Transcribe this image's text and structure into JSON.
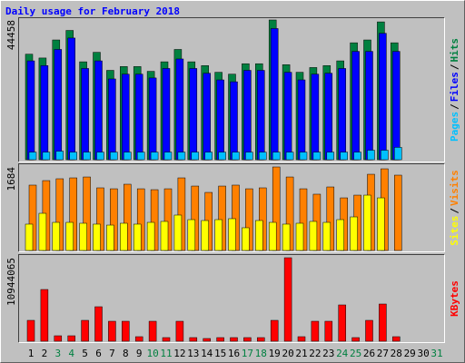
{
  "title": "Daily usage for February 2018",
  "label_separator": "/",
  "categories": [
    "1",
    "2",
    "3",
    "4",
    "5",
    "6",
    "7",
    "8",
    "9",
    "10",
    "11",
    "12",
    "13",
    "14",
    "15",
    "16",
    "17",
    "18",
    "19",
    "20",
    "21",
    "22",
    "23",
    "24",
    "25",
    "26",
    "27",
    "28",
    "29",
    "30",
    "31"
  ],
  "category_colors": [
    "#000000",
    "#000000",
    "#008040",
    "#008040",
    "#000000",
    "#000000",
    "#000000",
    "#000000",
    "#000000",
    "#008040",
    "#008040",
    "#000000",
    "#000000",
    "#000000",
    "#000000",
    "#000000",
    "#008040",
    "#008040",
    "#000000",
    "#000000",
    "#000000",
    "#000000",
    "#000000",
    "#008040",
    "#008040",
    "#000000",
    "#000000",
    "#000000",
    "#000000",
    "#000000",
    "#008040"
  ],
  "chart_data": [
    {
      "type": "bar",
      "ylim": [
        0,
        44458
      ],
      "yticks": [
        44458
      ],
      "series": [
        {
          "name": "Hits",
          "color": "#008040",
          "values": [
            33570,
            32360,
            38100,
            41130,
            31150,
            34170,
            28430,
            29640,
            29640,
            28120,
            31150,
            35080,
            31150,
            29940,
            27820,
            27220,
            30540,
            30540,
            44458,
            30240,
            27820,
            29330,
            29940,
            31450,
            37200,
            38100,
            43850,
            37200,
            0,
            0,
            0
          ]
        },
        {
          "name": "Files",
          "color": "#0000ff",
          "values": [
            31450,
            29940,
            35080,
            38710,
            29030,
            31450,
            25700,
            27220,
            27220,
            26010,
            29030,
            32050,
            29030,
            27520,
            25400,
            24800,
            28430,
            28430,
            41730,
            27820,
            25400,
            27220,
            27520,
            29030,
            34470,
            34470,
            40220,
            34470,
            0,
            0,
            0
          ]
        },
        {
          "name": "Pages",
          "color": "#00c0ff",
          "values": [
            2420,
            2420,
            2720,
            2420,
            2420,
            2420,
            2420,
            2420,
            2420,
            2420,
            2420,
            2420,
            2420,
            2420,
            2420,
            2420,
            2420,
            2420,
            2420,
            2420,
            2420,
            2420,
            2420,
            2420,
            2420,
            3020,
            3020,
            3930,
            0,
            0,
            0
          ]
        }
      ]
    },
    {
      "type": "bar",
      "ylim": [
        0,
        1684
      ],
      "yticks": [
        1684
      ],
      "series": [
        {
          "name": "Visits",
          "color": "#ff8000",
          "values": [
            1318,
            1409,
            1446,
            1464,
            1482,
            1263,
            1244,
            1336,
            1244,
            1226,
            1244,
            1464,
            1299,
            1171,
            1299,
            1318,
            1244,
            1263,
            1684,
            1482,
            1244,
            1135,
            1281,
            1061,
            1116,
            1537,
            1647,
            1519,
            0,
            0,
            0
          ]
        },
        {
          "name": "Sites",
          "color": "#ffff00",
          "values": [
            531,
            750,
            567,
            567,
            549,
            531,
            512,
            549,
            531,
            567,
            586,
            714,
            622,
            604,
            622,
            641,
            458,
            604,
            567,
            531,
            549,
            586,
            567,
            622,
            677,
            1116,
            1061,
            0,
            0,
            0,
            0
          ]
        }
      ]
    },
    {
      "type": "bar",
      "ylim": [
        0,
        10944065
      ],
      "yticks": [
        10944065
      ],
      "series": [
        {
          "name": "KBytes",
          "color": "#ff0000",
          "values": [
            2735900,
            6780500,
            713700,
            713700,
            2735900,
            4520400,
            2617100,
            2617100,
            594800,
            2617100,
            475800,
            2617100,
            475800,
            356900,
            475800,
            475800,
            475800,
            475800,
            2735900,
            10944065,
            594800,
            2617100,
            2617100,
            4758300,
            475800,
            2735900,
            4877200,
            594800,
            0,
            0,
            0
          ]
        }
      ]
    }
  ]
}
